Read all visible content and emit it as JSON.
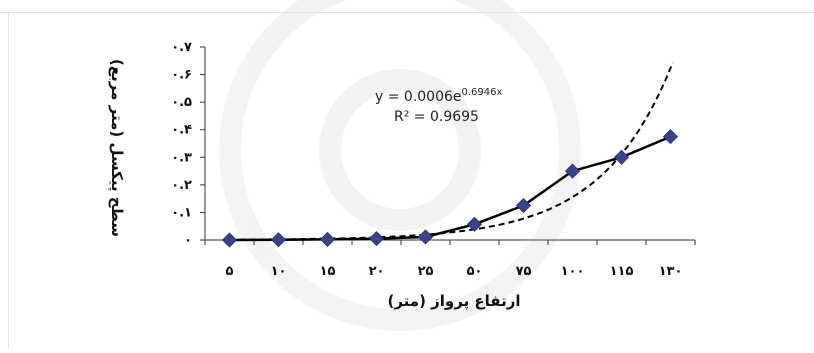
{
  "chart_data": {
    "type": "line",
    "categories": [
      "۵",
      "۱۰",
      "۱۵",
      "۲۰",
      "۲۵",
      "۵۰",
      "۷۵",
      "۱۰۰",
      "۱۱۵",
      "۱۳۰"
    ],
    "series": [
      {
        "values": [
          0.0,
          0.001,
          0.002,
          0.005,
          0.011,
          0.057,
          0.125,
          0.25,
          0.3,
          0.375
        ],
        "color": "#000000",
        "marker": "diamond",
        "marker_color": "#3d3f8f"
      }
    ],
    "trendline": {
      "type": "exponential",
      "a": 0.0006,
      "b": 0.6946,
      "style": "dashed",
      "color": "#000000"
    },
    "equation": {
      "prefix": "y = 0.0006e",
      "exponent": "0.6946x",
      "r2": "R² = 0.9695"
    },
    "xlabel": "ارتفاع پرواز (متر)",
    "ylabel": "سطح پیکسل (متر مربع)",
    "ylim": [
      0,
      0.7
    ],
    "yticks": [
      0,
      0.1,
      0.2,
      0.3,
      0.4,
      0.5,
      0.6,
      0.7
    ],
    "ytick_labels": [
      "۰",
      "۰.۱",
      "۰.۲",
      "۰.۳",
      "۰.۴",
      "۰.۵",
      "۰.۶",
      "۰.۷"
    ],
    "grid": false,
    "legend": "none"
  }
}
